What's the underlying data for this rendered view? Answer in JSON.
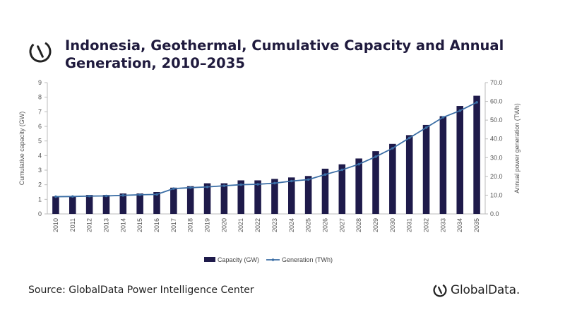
{
  "header": {
    "title_line1": "Indonesia, Geothermal, Cumulative Capacity and Annual",
    "title_line2": "Generation, 2010–2035"
  },
  "footer": {
    "source": "Source: GlobalData Power Intelligence Center",
    "brand": "GlobalData."
  },
  "icons": {
    "header_logo": "globaldata-logo-icon",
    "footer_logo": "globaldata-logo-icon"
  },
  "colors": {
    "bar": "#1e1a4a",
    "line": "#3b6ea5",
    "text": "#1f1a3d"
  },
  "chart_data": {
    "type": "bar",
    "categories": [
      "2010",
      "2011",
      "2012",
      "2013",
      "2014",
      "2015",
      "2016",
      "2017",
      "2018",
      "2019",
      "2020",
      "2021",
      "2022",
      "2023",
      "2024",
      "2025",
      "2026",
      "2027",
      "2028",
      "2029",
      "2030",
      "2031",
      "2032",
      "2033",
      "2034",
      "2035"
    ],
    "series": [
      {
        "name": "Capacity (GW)",
        "type": "bar",
        "axis": "left",
        "values": [
          1.2,
          1.2,
          1.3,
          1.3,
          1.4,
          1.4,
          1.5,
          1.8,
          1.9,
          2.1,
          2.1,
          2.3,
          2.3,
          2.4,
          2.5,
          2.6,
          3.1,
          3.4,
          3.8,
          4.3,
          4.8,
          5.4,
          6.1,
          6.7,
          7.4,
          8.1
        ]
      },
      {
        "name": "Generation (TWh)",
        "type": "line",
        "axis": "right",
        "values": [
          9.2,
          9.3,
          9.5,
          9.6,
          9.9,
          10.2,
          10.4,
          13.5,
          14.0,
          14.4,
          15.0,
          15.6,
          15.8,
          16.4,
          17.5,
          18.3,
          21.0,
          23.5,
          26.5,
          30.5,
          35.0,
          40.5,
          46.0,
          51.5,
          55.0,
          59.5
        ]
      }
    ],
    "ylabel": "Cumulative capacity (GW)",
    "y2label": "Annual power generation (TWh)",
    "ylim": [
      0,
      9
    ],
    "y2lim": [
      0,
      70
    ],
    "yticks": [
      "0",
      "1",
      "2",
      "3",
      "4",
      "5",
      "6",
      "7",
      "8",
      "9"
    ],
    "y2ticks": [
      "0.0",
      "10.0",
      "20.0",
      "30.0",
      "40.0",
      "50.0",
      "60.0",
      "70.0"
    ],
    "legend": [
      "Capacity (GW)",
      "Generation (TWh)"
    ],
    "legend_position": "bottom"
  }
}
